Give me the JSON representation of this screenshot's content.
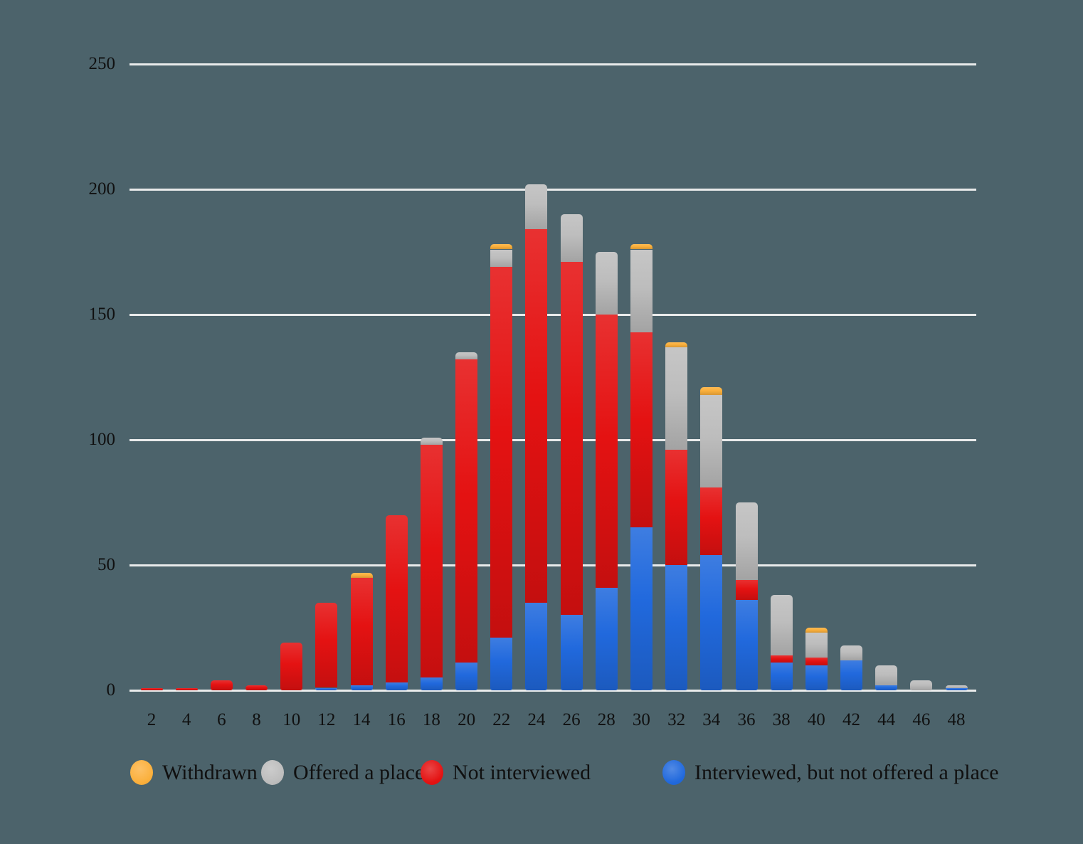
{
  "chart": {
    "background_color": "#4c636b",
    "gridline_color": "#e9ebeb",
    "text_color": "#101010"
  },
  "chart_data": {
    "type": "bar",
    "stacked": true,
    "title": "",
    "xlabel": "",
    "ylabel": "",
    "x": [
      2,
      4,
      6,
      8,
      10,
      12,
      14,
      16,
      18,
      20,
      22,
      24,
      26,
      28,
      30,
      32,
      34,
      36,
      38,
      40,
      42,
      44,
      46,
      48
    ],
    "yticks": [
      0,
      50,
      100,
      150,
      200,
      250
    ],
    "ylim": [
      0,
      250
    ],
    "grid": "horizontal",
    "legend_position": "bottom",
    "series": [
      {
        "name": "Interviewed, but not offered a place",
        "color": "#2169dd",
        "values": [
          0,
          0,
          0,
          0,
          0,
          1,
          2,
          3,
          5,
          11,
          21,
          35,
          30,
          41,
          65,
          50,
          54,
          36,
          11,
          10,
          12,
          2,
          0,
          1
        ]
      },
      {
        "name": "Not interviewed",
        "color": "#e41212",
        "values": [
          1,
          1,
          4,
          2,
          19,
          34,
          43,
          67,
          93,
          121,
          148,
          149,
          141,
          109,
          78,
          46,
          27,
          8,
          3,
          3,
          0,
          0,
          0,
          0
        ]
      },
      {
        "name": "Offered a place",
        "color": "#bdbdbd",
        "values": [
          0,
          0,
          0,
          0,
          0,
          0,
          0,
          0,
          3,
          3,
          7,
          18,
          19,
          25,
          33,
          41,
          37,
          31,
          24,
          10,
          6,
          8,
          4,
          1
        ]
      },
      {
        "name": "Withdrawn",
        "color": "#fbb03c",
        "values": [
          0,
          0,
          0,
          0,
          0,
          0,
          2,
          0,
          0,
          0,
          2,
          0,
          0,
          0,
          2,
          2,
          3,
          0,
          0,
          2,
          0,
          0,
          0,
          0
        ]
      }
    ],
    "legend": [
      {
        "label": "Withdrawn",
        "color": "#fbb03c"
      },
      {
        "label": "Offered a place",
        "color": "#bdbdbd"
      },
      {
        "label": "Not interviewed",
        "color": "#e41212"
      },
      {
        "label": "Interviewed, but not offered a place",
        "color": "#2169dd"
      }
    ]
  }
}
